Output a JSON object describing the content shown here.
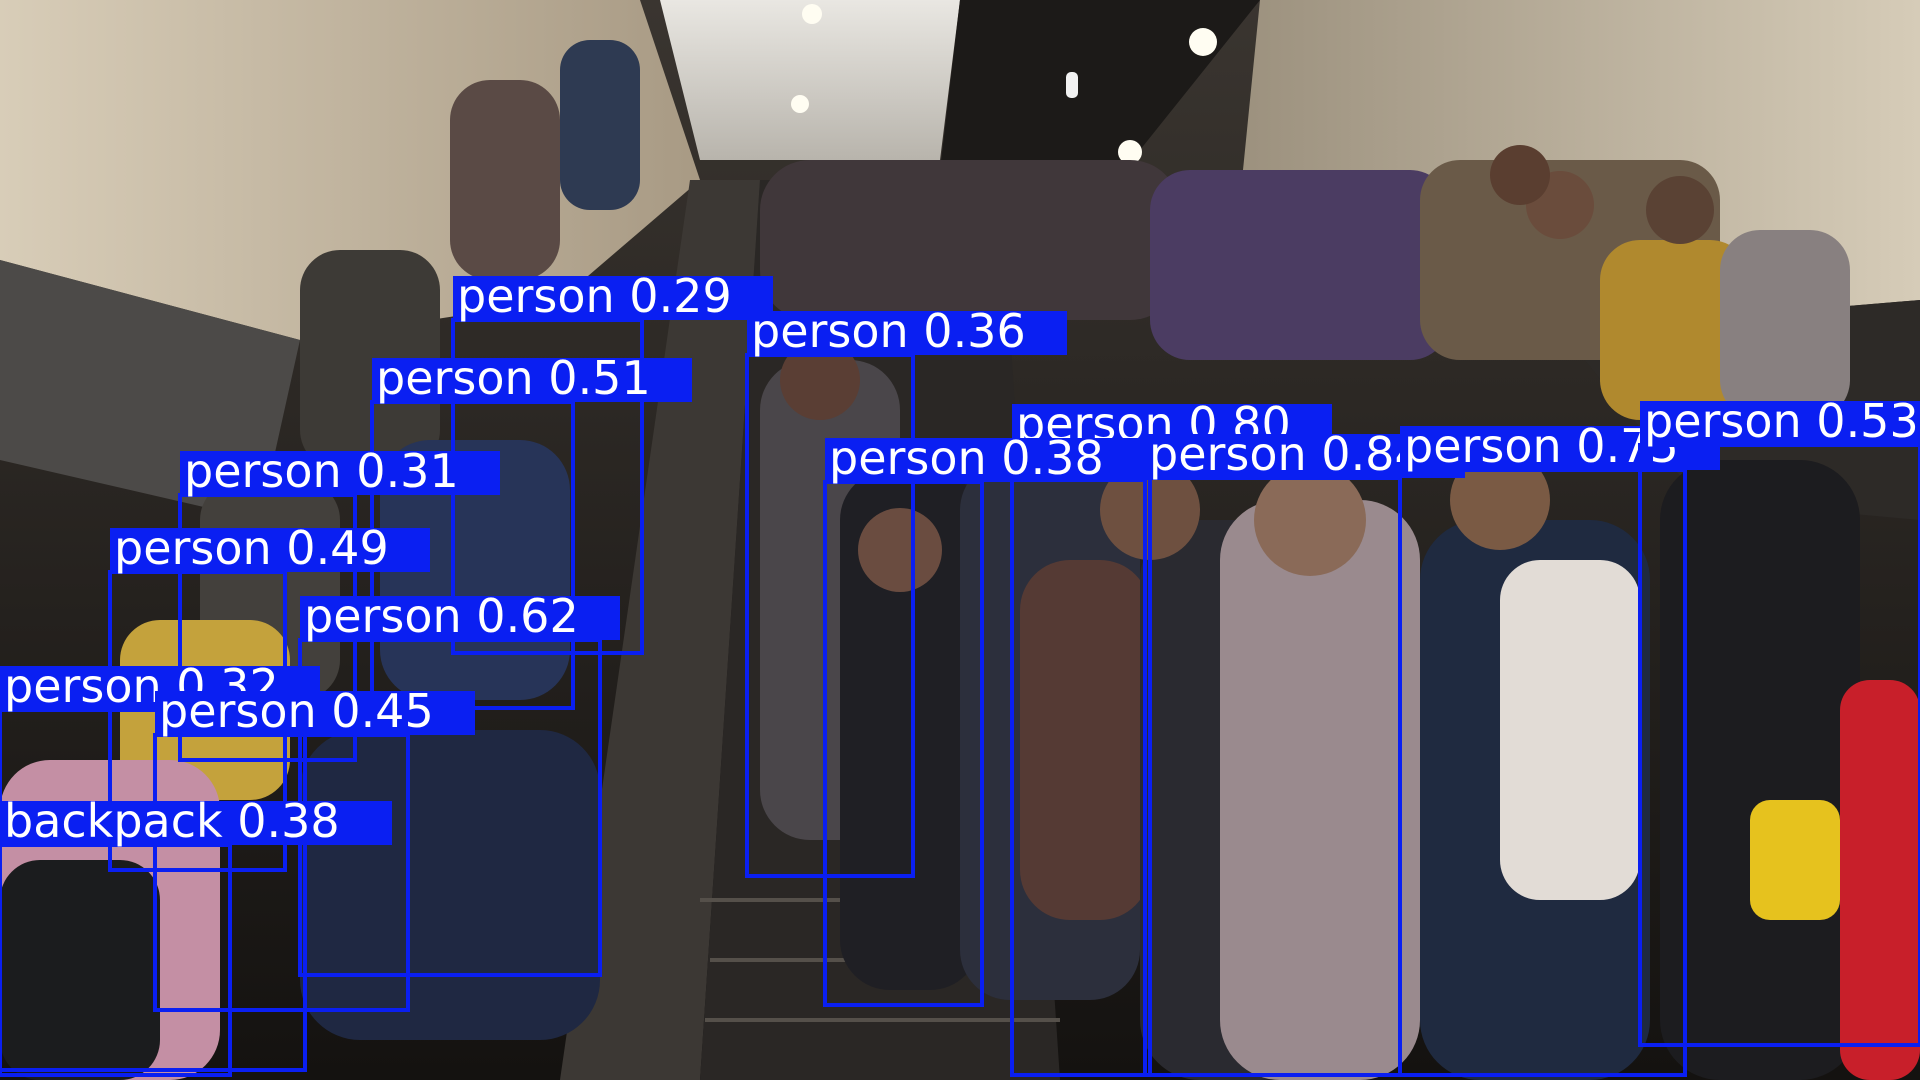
{
  "detections": [
    {
      "label": "person 0.29",
      "color": "#0a1ff2"
    },
    {
      "label": "person 0.36",
      "color": "#0a1ff2"
    },
    {
      "label": "person 0.51",
      "color": "#0a1ff2"
    },
    {
      "label": "person 0.31",
      "color": "#0a1ff2"
    },
    {
      "label": "person 0.49",
      "color": "#0a1ff2"
    },
    {
      "label": "person 0.62",
      "color": "#0a1ff2"
    },
    {
      "label": "person 0.32",
      "color": "#0a1ff2"
    },
    {
      "label": "person 0.45",
      "color": "#0a1ff2"
    },
    {
      "label": "backpack 0.38",
      "color": "#0a1ff2"
    },
    {
      "label": "person 0.80",
      "color": "#0a1ff2"
    },
    {
      "label": "person 0.38",
      "color": "#0a1ff2"
    },
    {
      "label": "person 0.84",
      "color": "#0a1ff2"
    },
    {
      "label": "person 0.75",
      "color": "#0a1ff2"
    },
    {
      "label": "person 0.53",
      "color": "#0a1ff2"
    }
  ]
}
